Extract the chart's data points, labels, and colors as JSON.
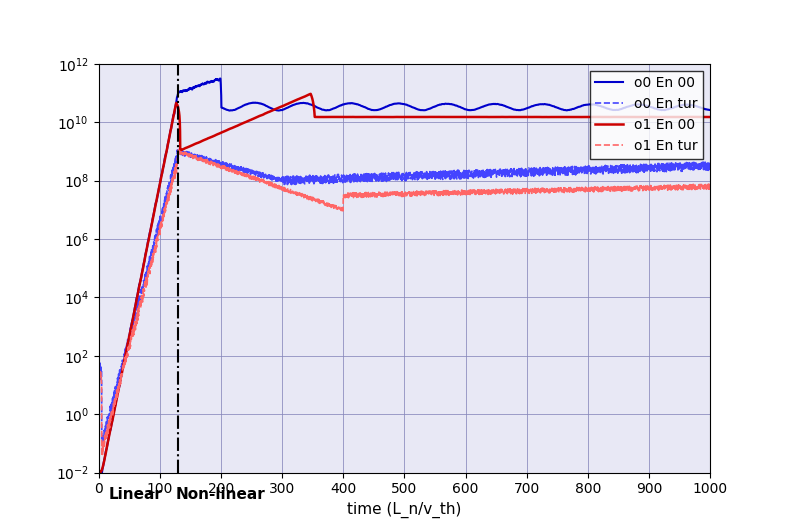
{
  "title": "",
  "xlabel": "time (L_n/v_th)",
  "ylabel": "",
  "xlim": [
    0,
    1000
  ],
  "ylim_log": [
    -2,
    12
  ],
  "dashed_line_x": 130,
  "linear_label": "Linear",
  "nonlinear_label": "Non-linear",
  "legend_labels": [
    "o0 En 00",
    "o0 En tur",
    "o1 En 00",
    "o1 En tur"
  ],
  "colors": {
    "blue": "#0000CC",
    "blue_dashed": "#4444FF",
    "red": "#CC0000",
    "red_dashed": "#FF6666"
  },
  "background_color": "#FFFFFF",
  "grid_color": "#AAAACC",
  "figsize": [
    7.89,
    5.31
  ],
  "dpi": 100
}
